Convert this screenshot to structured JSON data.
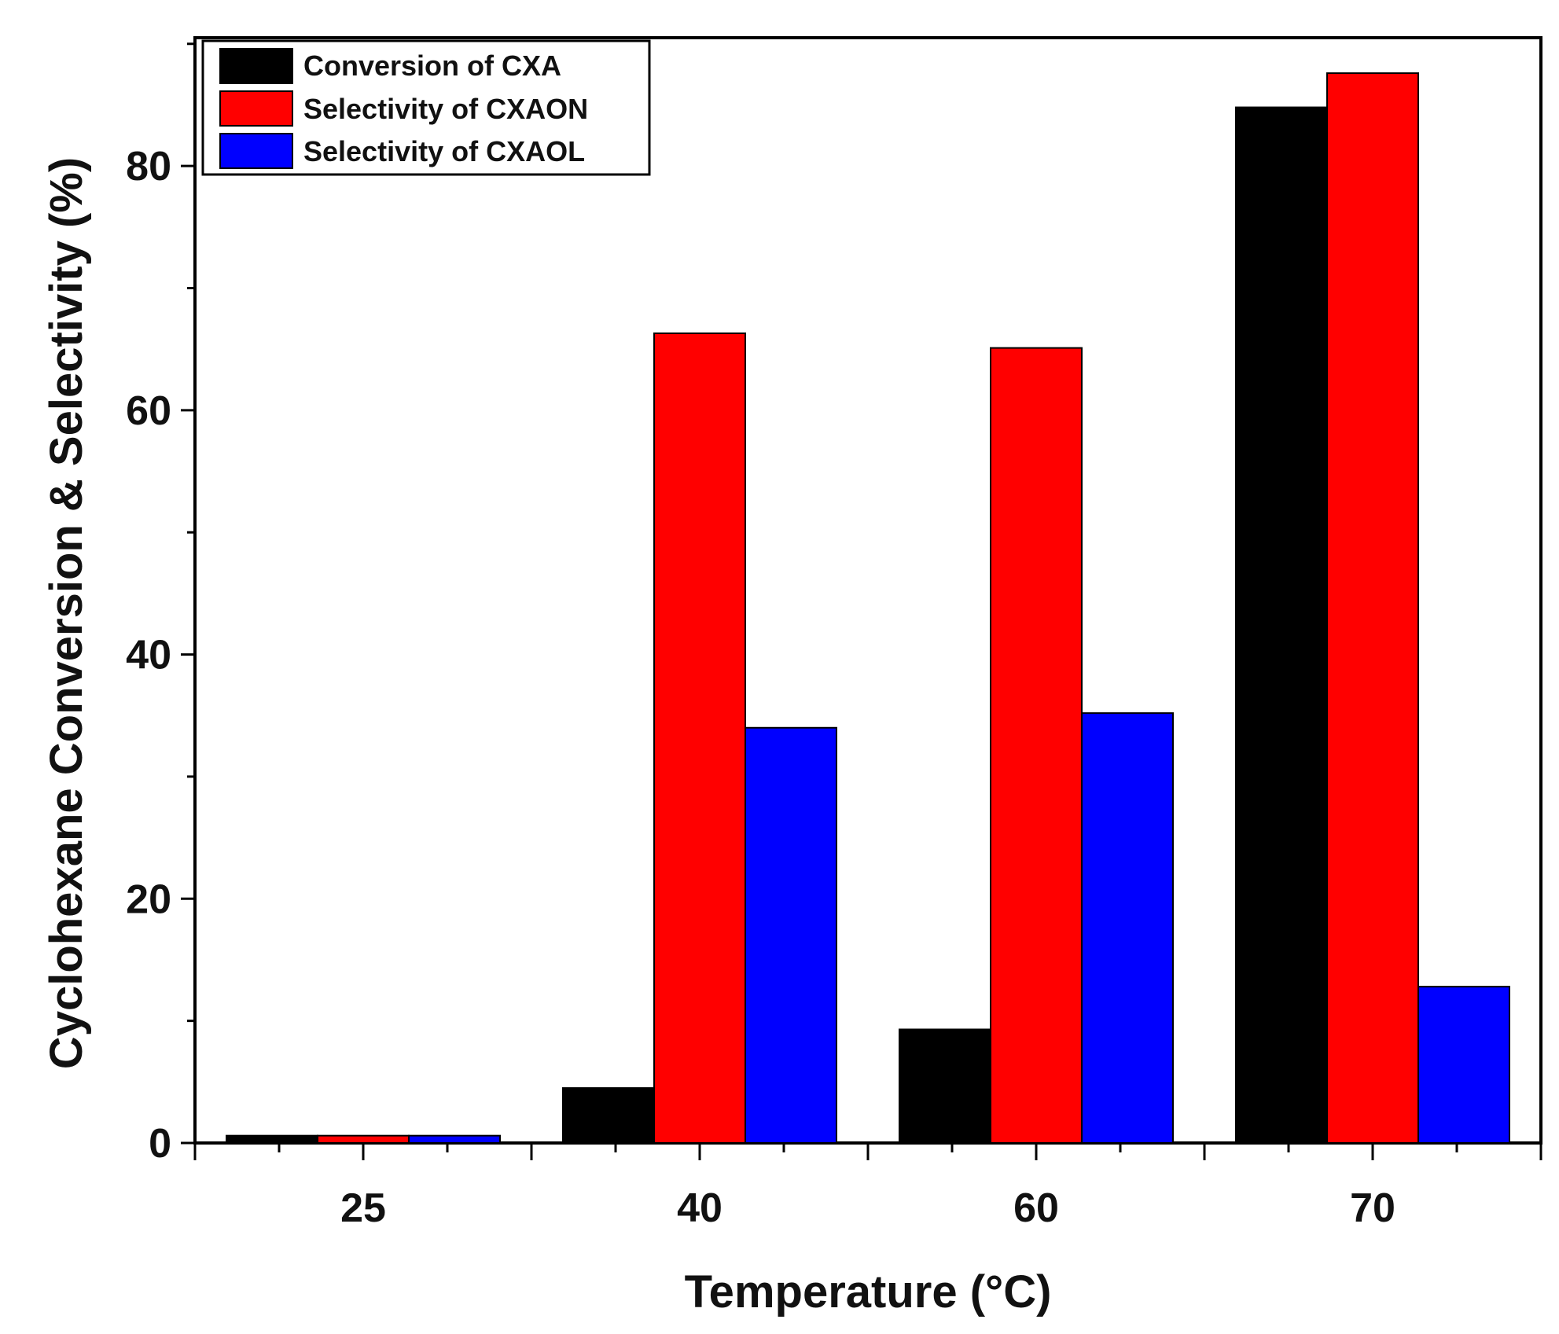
{
  "chart_data": {
    "type": "bar",
    "categories": [
      "25",
      "40",
      "60",
      "70"
    ],
    "series": [
      {
        "name": "Conversion of CXA",
        "color": "#000000",
        "values": [
          0.6,
          4.5,
          9.3,
          84.8
        ]
      },
      {
        "name": "Selectivity of CXAON",
        "color": "#ff0000",
        "values": [
          0.6,
          66.3,
          65.1,
          87.6
        ]
      },
      {
        "name": "Selectivity of CXAOL",
        "color": "#0000ff",
        "values": [
          0.6,
          34.0,
          35.2,
          12.8
        ]
      }
    ],
    "xlabel": "Temperature (°C)",
    "ylabel": "Cyclohexane Conversion & Selectivity (%)",
    "ylim": [
      0,
      90.5
    ],
    "yticks": [
      0,
      20,
      40,
      60,
      80
    ],
    "legend_position": "top-left",
    "grid": false
  }
}
